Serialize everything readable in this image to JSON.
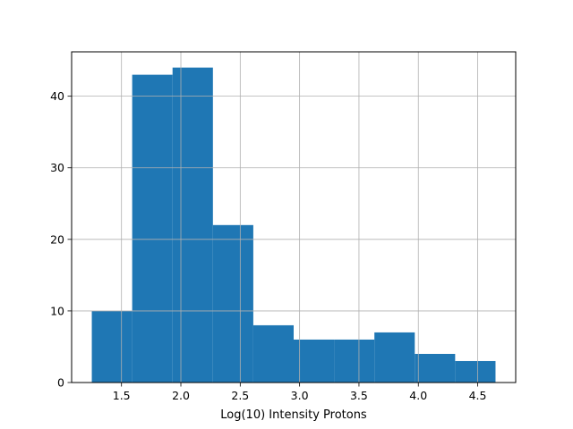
{
  "chart_data": {
    "type": "bar",
    "title": "",
    "xlabel": "Log(10) Intensity Protons",
    "ylabel": "",
    "bin_edges": [
      1.25,
      1.59,
      1.93,
      2.27,
      2.61,
      2.95,
      3.29,
      3.63,
      3.97,
      4.31,
      4.65
    ],
    "values": [
      10,
      43,
      44,
      22,
      8,
      6,
      6,
      7,
      4,
      3
    ],
    "xlim": [
      1.08,
      4.82
    ],
    "ylim": [
      0,
      46.2
    ],
    "xticks": [
      1.5,
      2.0,
      2.5,
      3.0,
      3.5,
      4.0,
      4.5
    ],
    "xtick_labels": [
      "1.5",
      "2.0",
      "2.5",
      "3.0",
      "3.5",
      "4.0",
      "4.5"
    ],
    "yticks": [
      0,
      10,
      20,
      30,
      40
    ],
    "ytick_labels": [
      "0",
      "10",
      "20",
      "30",
      "40"
    ],
    "grid": true,
    "bar_color": "#1f77b4"
  }
}
